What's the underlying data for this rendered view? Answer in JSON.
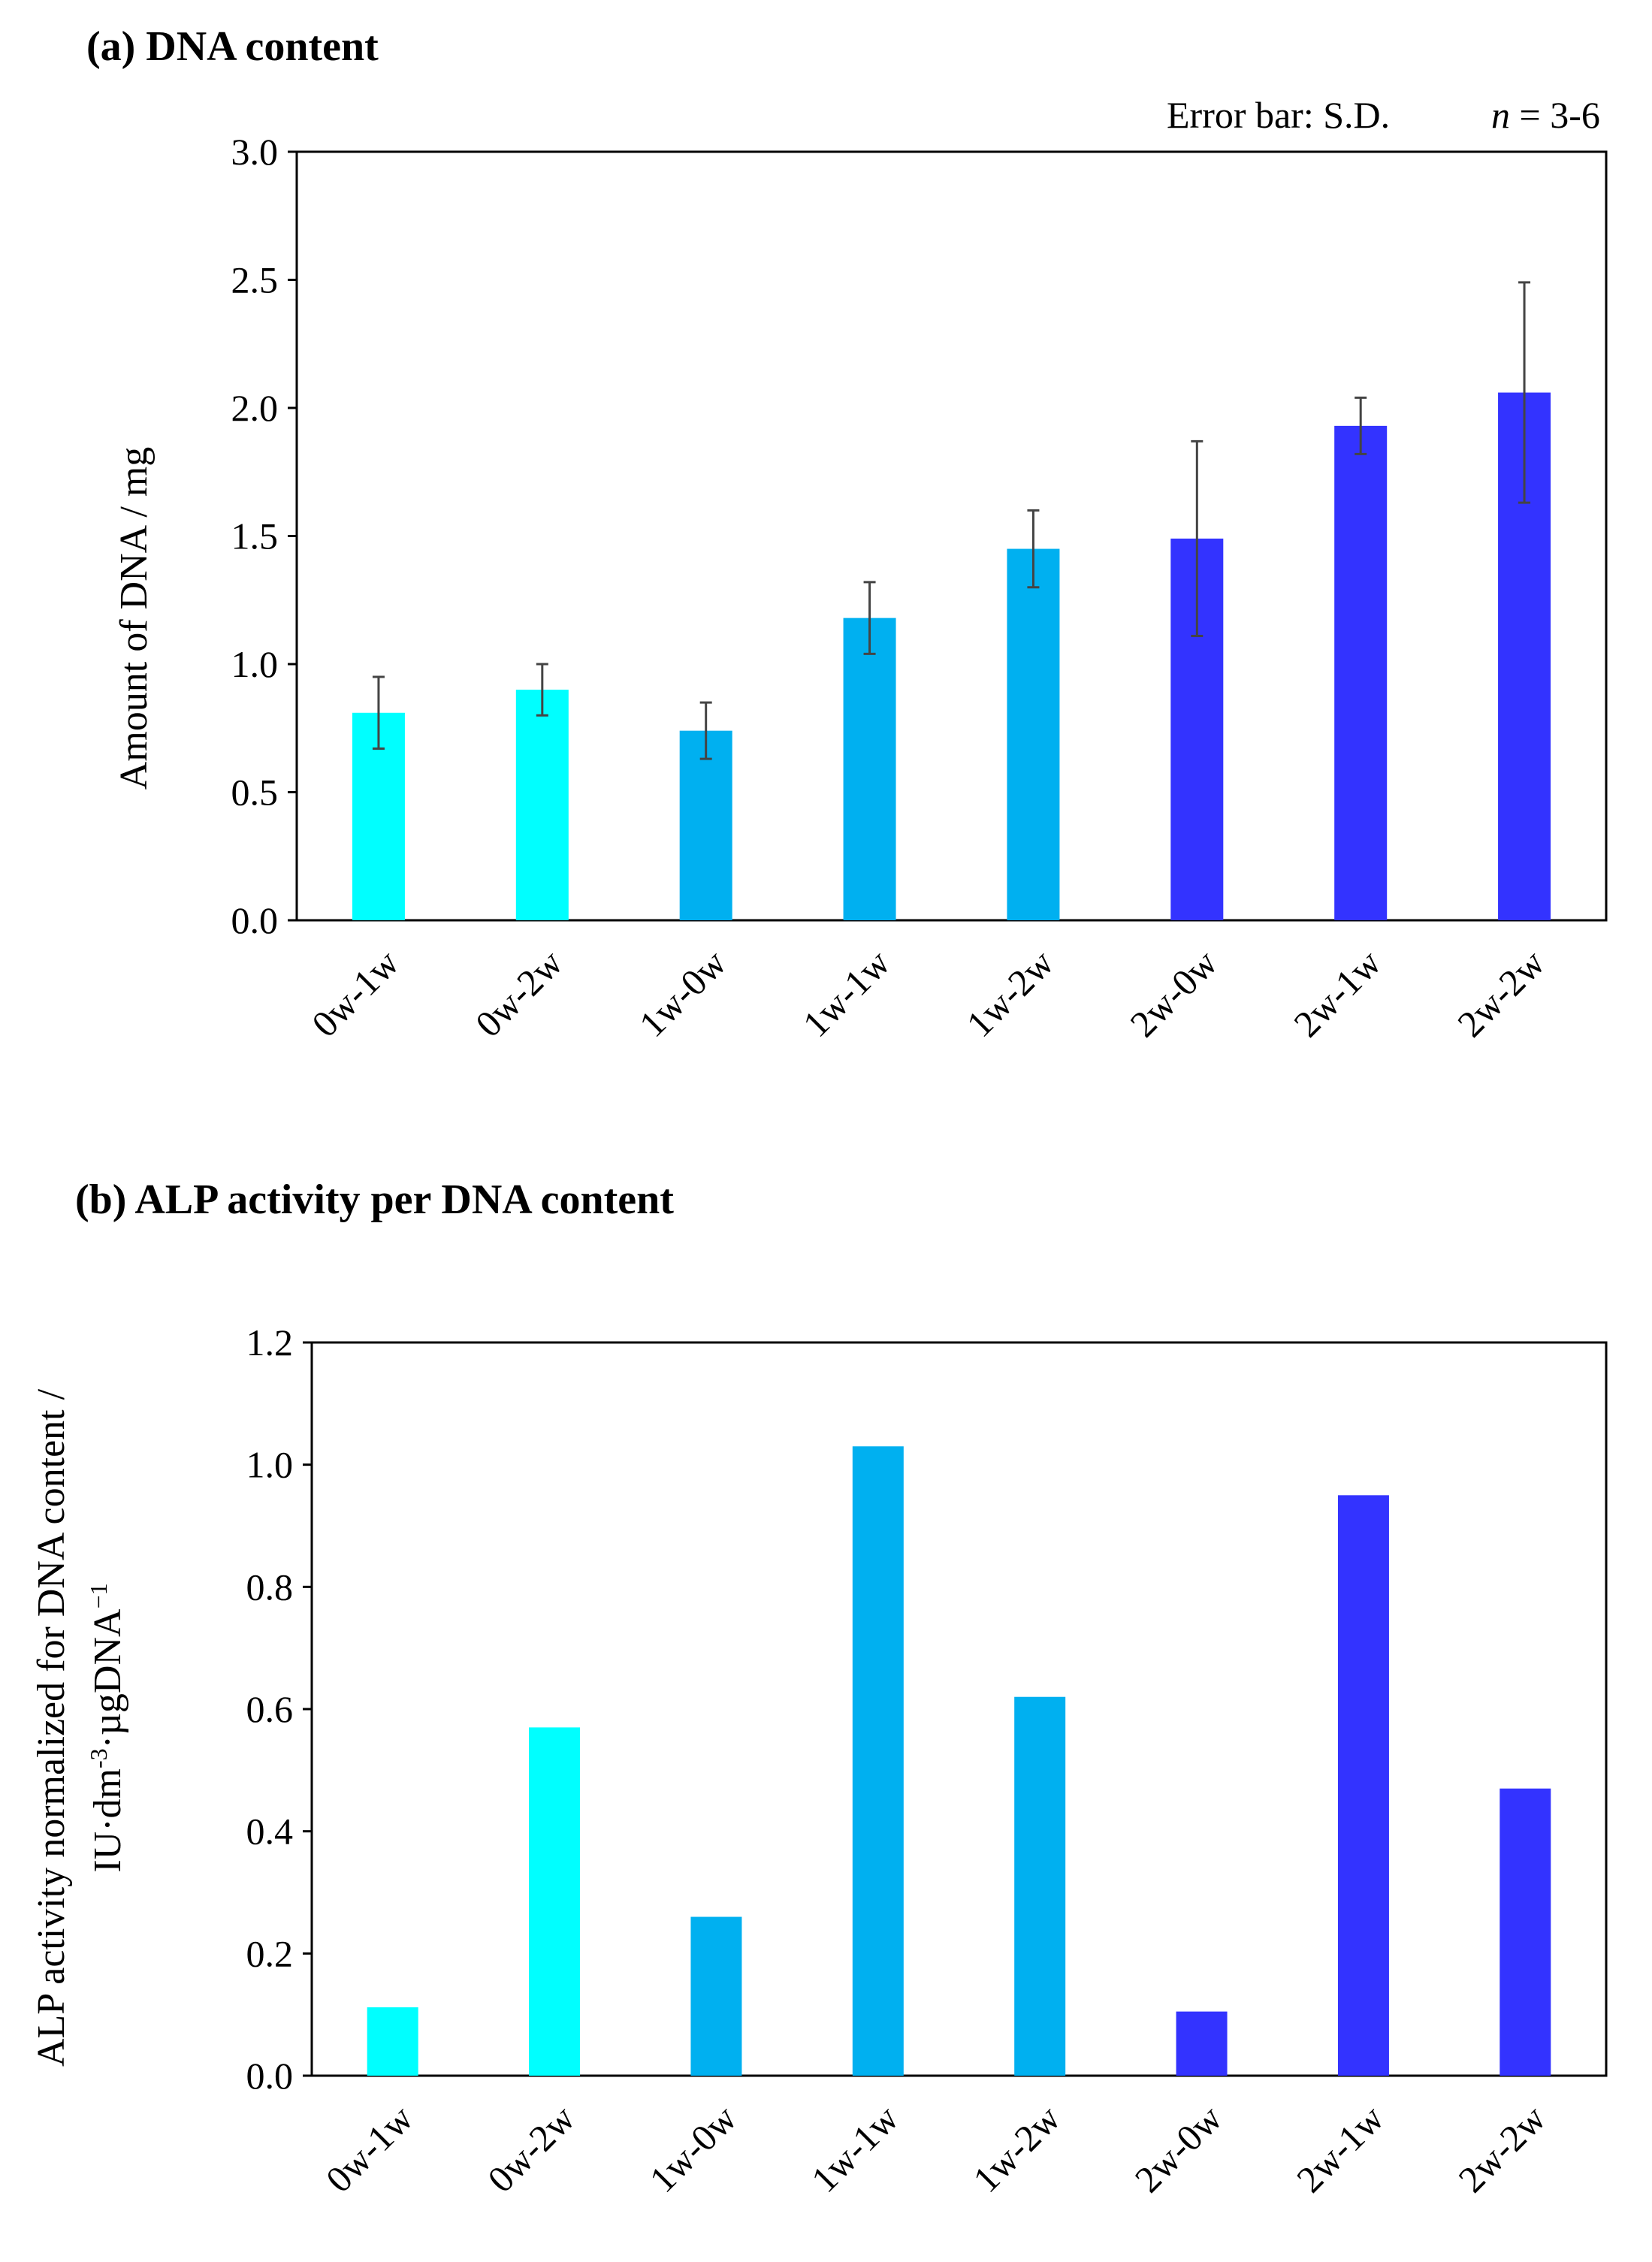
{
  "chart_data": [
    {
      "type": "bar",
      "title": "(a) DNA content",
      "note_error": "Error bar: S.D.",
      "note_n_italic": "n",
      "note_n_rest": " = 3-6",
      "ylabel": "Amount of  DNA / mg",
      "xlabel": "",
      "ylim": [
        0,
        3.0
      ],
      "yticks": [
        "0.0",
        "0.5",
        "1.0",
        "1.5",
        "2.0",
        "2.5",
        "3.0"
      ],
      "categories": [
        "0w-1w",
        "0w-2w",
        "1w-0w",
        "1w-1w",
        "1w-2w",
        "2w-0w",
        "2w-1w",
        "2w-2w"
      ],
      "values": [
        0.81,
        0.9,
        0.74,
        1.18,
        1.45,
        1.49,
        1.93,
        2.06
      ],
      "errors": [
        0.14,
        0.1,
        0.11,
        0.14,
        0.15,
        0.38,
        0.11,
        0.43
      ],
      "colors": [
        "#00ffff",
        "#00ffff",
        "#00b0f0",
        "#00b0f0",
        "#00b0f0",
        "#3333ff",
        "#3333ff",
        "#3333ff"
      ]
    },
    {
      "type": "bar",
      "title": "(b)  ALP activity per DNA content",
      "ylabel_line1": "ALP activity normalized for DNA content /",
      "ylabel_line2_a": "IU·dm",
      "ylabel_line2_sup1": "-3",
      "ylabel_line2_b": "·µgDNA",
      "ylabel_line2_sup2": "−1",
      "xlabel": "",
      "ylim": [
        0,
        1.2
      ],
      "yticks": [
        "0.0",
        "0.2",
        "0.4",
        "0.6",
        "0.8",
        "1.0",
        "1.2"
      ],
      "categories": [
        "0w-1w",
        "0w-2w",
        "1w-0w",
        "1w-1w",
        "1w-2w",
        "2w-0w",
        "2w-1w",
        "2w-2w"
      ],
      "values": [
        0.112,
        0.57,
        0.26,
        1.03,
        0.62,
        0.105,
        0.95,
        0.47
      ],
      "colors": [
        "#00ffff",
        "#00ffff",
        "#00b0f0",
        "#00b0f0",
        "#00b0f0",
        "#3333ff",
        "#3333ff",
        "#3333ff"
      ]
    }
  ]
}
